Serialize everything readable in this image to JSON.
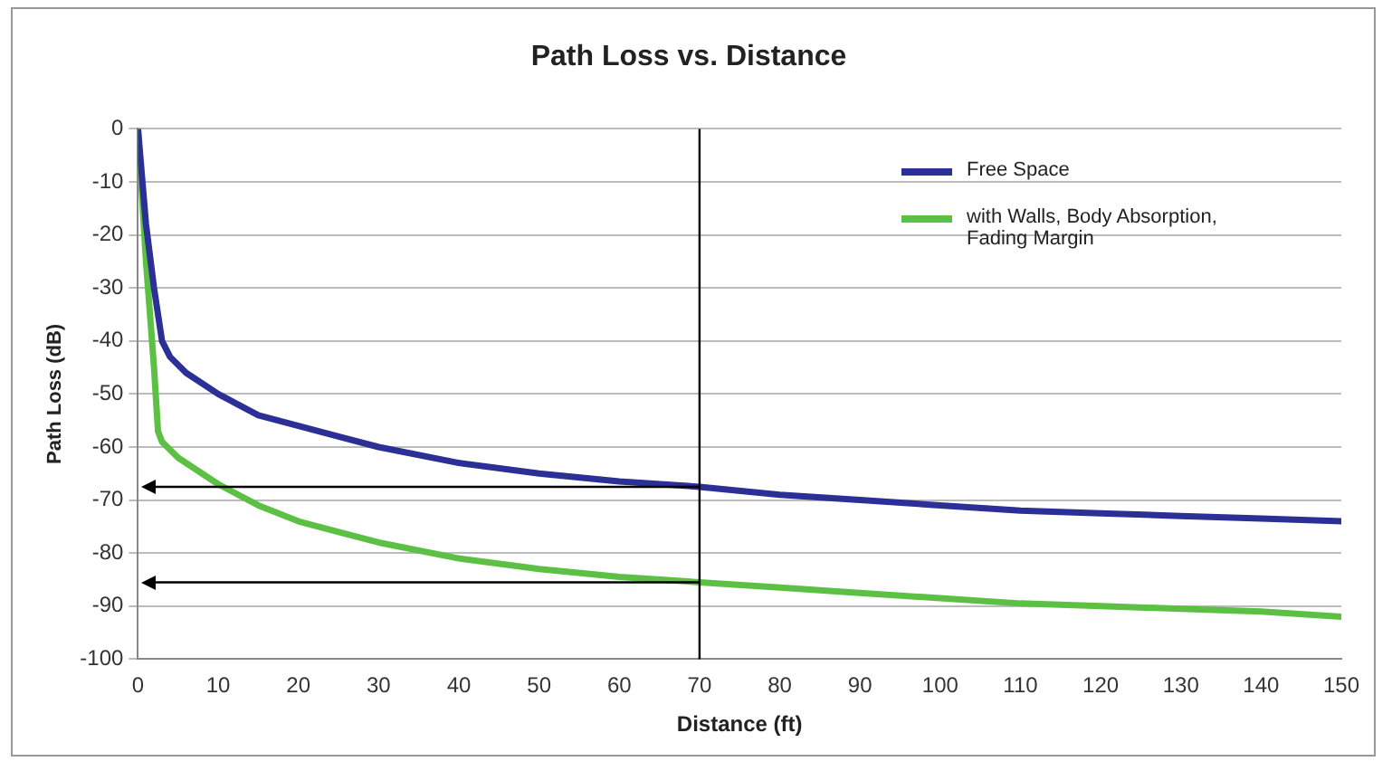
{
  "chart_data": {
    "type": "line",
    "title": "Path Loss vs. Distance",
    "xlabel": "Distance (ft)",
    "ylabel": "Path Loss (dB)",
    "xlim": [
      0,
      150
    ],
    "xticks": [
      0,
      10,
      20,
      30,
      40,
      50,
      60,
      70,
      80,
      90,
      100,
      110,
      120,
      130,
      140,
      150
    ],
    "ylim": [
      -100,
      0
    ],
    "yticks": [
      0,
      -10,
      -20,
      -30,
      -40,
      -50,
      -60,
      -70,
      -80,
      -90,
      -100
    ],
    "grid": "y",
    "legend": "top right",
    "marker": "none",
    "line_style": "solid",
    "series": [
      {
        "name": "Free Space",
        "color": "#2b2f96",
        "x": [
          0,
          1,
          2,
          3,
          4,
          6,
          10,
          15,
          20,
          25,
          30,
          40,
          50,
          60,
          70,
          80,
          90,
          100,
          110,
          120,
          130,
          140,
          150
        ],
        "values": [
          0,
          -18,
          -30,
          -40,
          -43,
          -46,
          -50,
          -54,
          -56,
          -58,
          -60,
          -63,
          -65,
          -66.5,
          -67.5,
          -69,
          -70,
          -71,
          -72,
          -72.5,
          -73,
          -73.5,
          -74
        ]
      },
      {
        "name": "with Walls, Body Absorption, Fading Margin",
        "color": "#5cc044",
        "x": [
          0,
          1,
          2,
          2.5,
          3,
          5,
          10,
          15,
          20,
          25,
          30,
          40,
          50,
          60,
          70,
          80,
          90,
          100,
          110,
          120,
          130,
          140,
          150
        ],
        "values": [
          0,
          -25,
          -45,
          -57,
          -59,
          -62,
          -67,
          -71,
          -74,
          -76,
          -78,
          -81,
          -83,
          -84.5,
          -85.5,
          -86.5,
          -87.5,
          -88.5,
          -89.5,
          -90,
          -90.5,
          -91,
          -92
        ]
      }
    ],
    "ref_lines": [
      {
        "axis": "x",
        "value": 70,
        "color": "#000000"
      },
      {
        "axis": "y",
        "value": -67.5,
        "color": "#000000"
      },
      {
        "axis": "y",
        "value": -85.5,
        "color": "#000000"
      }
    ]
  }
}
